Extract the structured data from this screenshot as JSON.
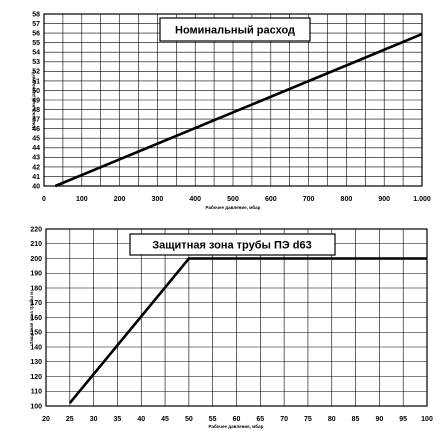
{
  "chart_data": [
    {
      "type": "line",
      "title": "Номинальный расход",
      "xlabel": "Рабочее давление, мбар",
      "ylabel": "Номинальный расход, м³/ч",
      "xlim": [
        0,
        1000
      ],
      "ylim": [
        40,
        58
      ],
      "x_ticks": [
        "0",
        "100",
        "200",
        "300",
        "400",
        "500",
        "600",
        "700",
        "800",
        "900",
        "1.000"
      ],
      "x_tick_values": [
        0,
        100,
        200,
        300,
        400,
        500,
        600,
        700,
        800,
        900,
        1000
      ],
      "y_ticks": [
        40,
        41,
        42,
        43,
        44,
        45,
        46,
        47,
        48,
        49,
        50,
        51,
        52,
        53,
        54,
        55,
        56,
        57,
        58
      ],
      "x_grid_step": 50,
      "grid": true,
      "series": [
        {
          "x": [
            30,
            1000
          ],
          "y": [
            40,
            55.9
          ]
        }
      ]
    },
    {
      "type": "line",
      "title": "Защитная зона трубы ПЭ d63",
      "xlabel": "Рабочее давление, мбар",
      "ylabel": "Защитная зона трубы м",
      "xlim": [
        20,
        100
      ],
      "ylim": [
        100,
        220
      ],
      "x_ticks": [
        "20",
        "25",
        "30",
        "35",
        "40",
        "45",
        "50",
        "55",
        "60",
        "65",
        "70",
        "75",
        "80",
        "85",
        "90",
        "95",
        "100"
      ],
      "x_tick_values": [
        20,
        25,
        30,
        35,
        40,
        45,
        50,
        55,
        60,
        65,
        70,
        75,
        80,
        85,
        90,
        95,
        100
      ],
      "y_ticks": [
        100,
        110,
        120,
        130,
        140,
        150,
        160,
        170,
        180,
        190,
        200,
        210,
        220
      ],
      "x_grid_step": 5,
      "grid": true,
      "series": [
        {
          "x": [
            25,
            50,
            100
          ],
          "y": [
            102,
            200,
            200
          ]
        }
      ]
    }
  ]
}
